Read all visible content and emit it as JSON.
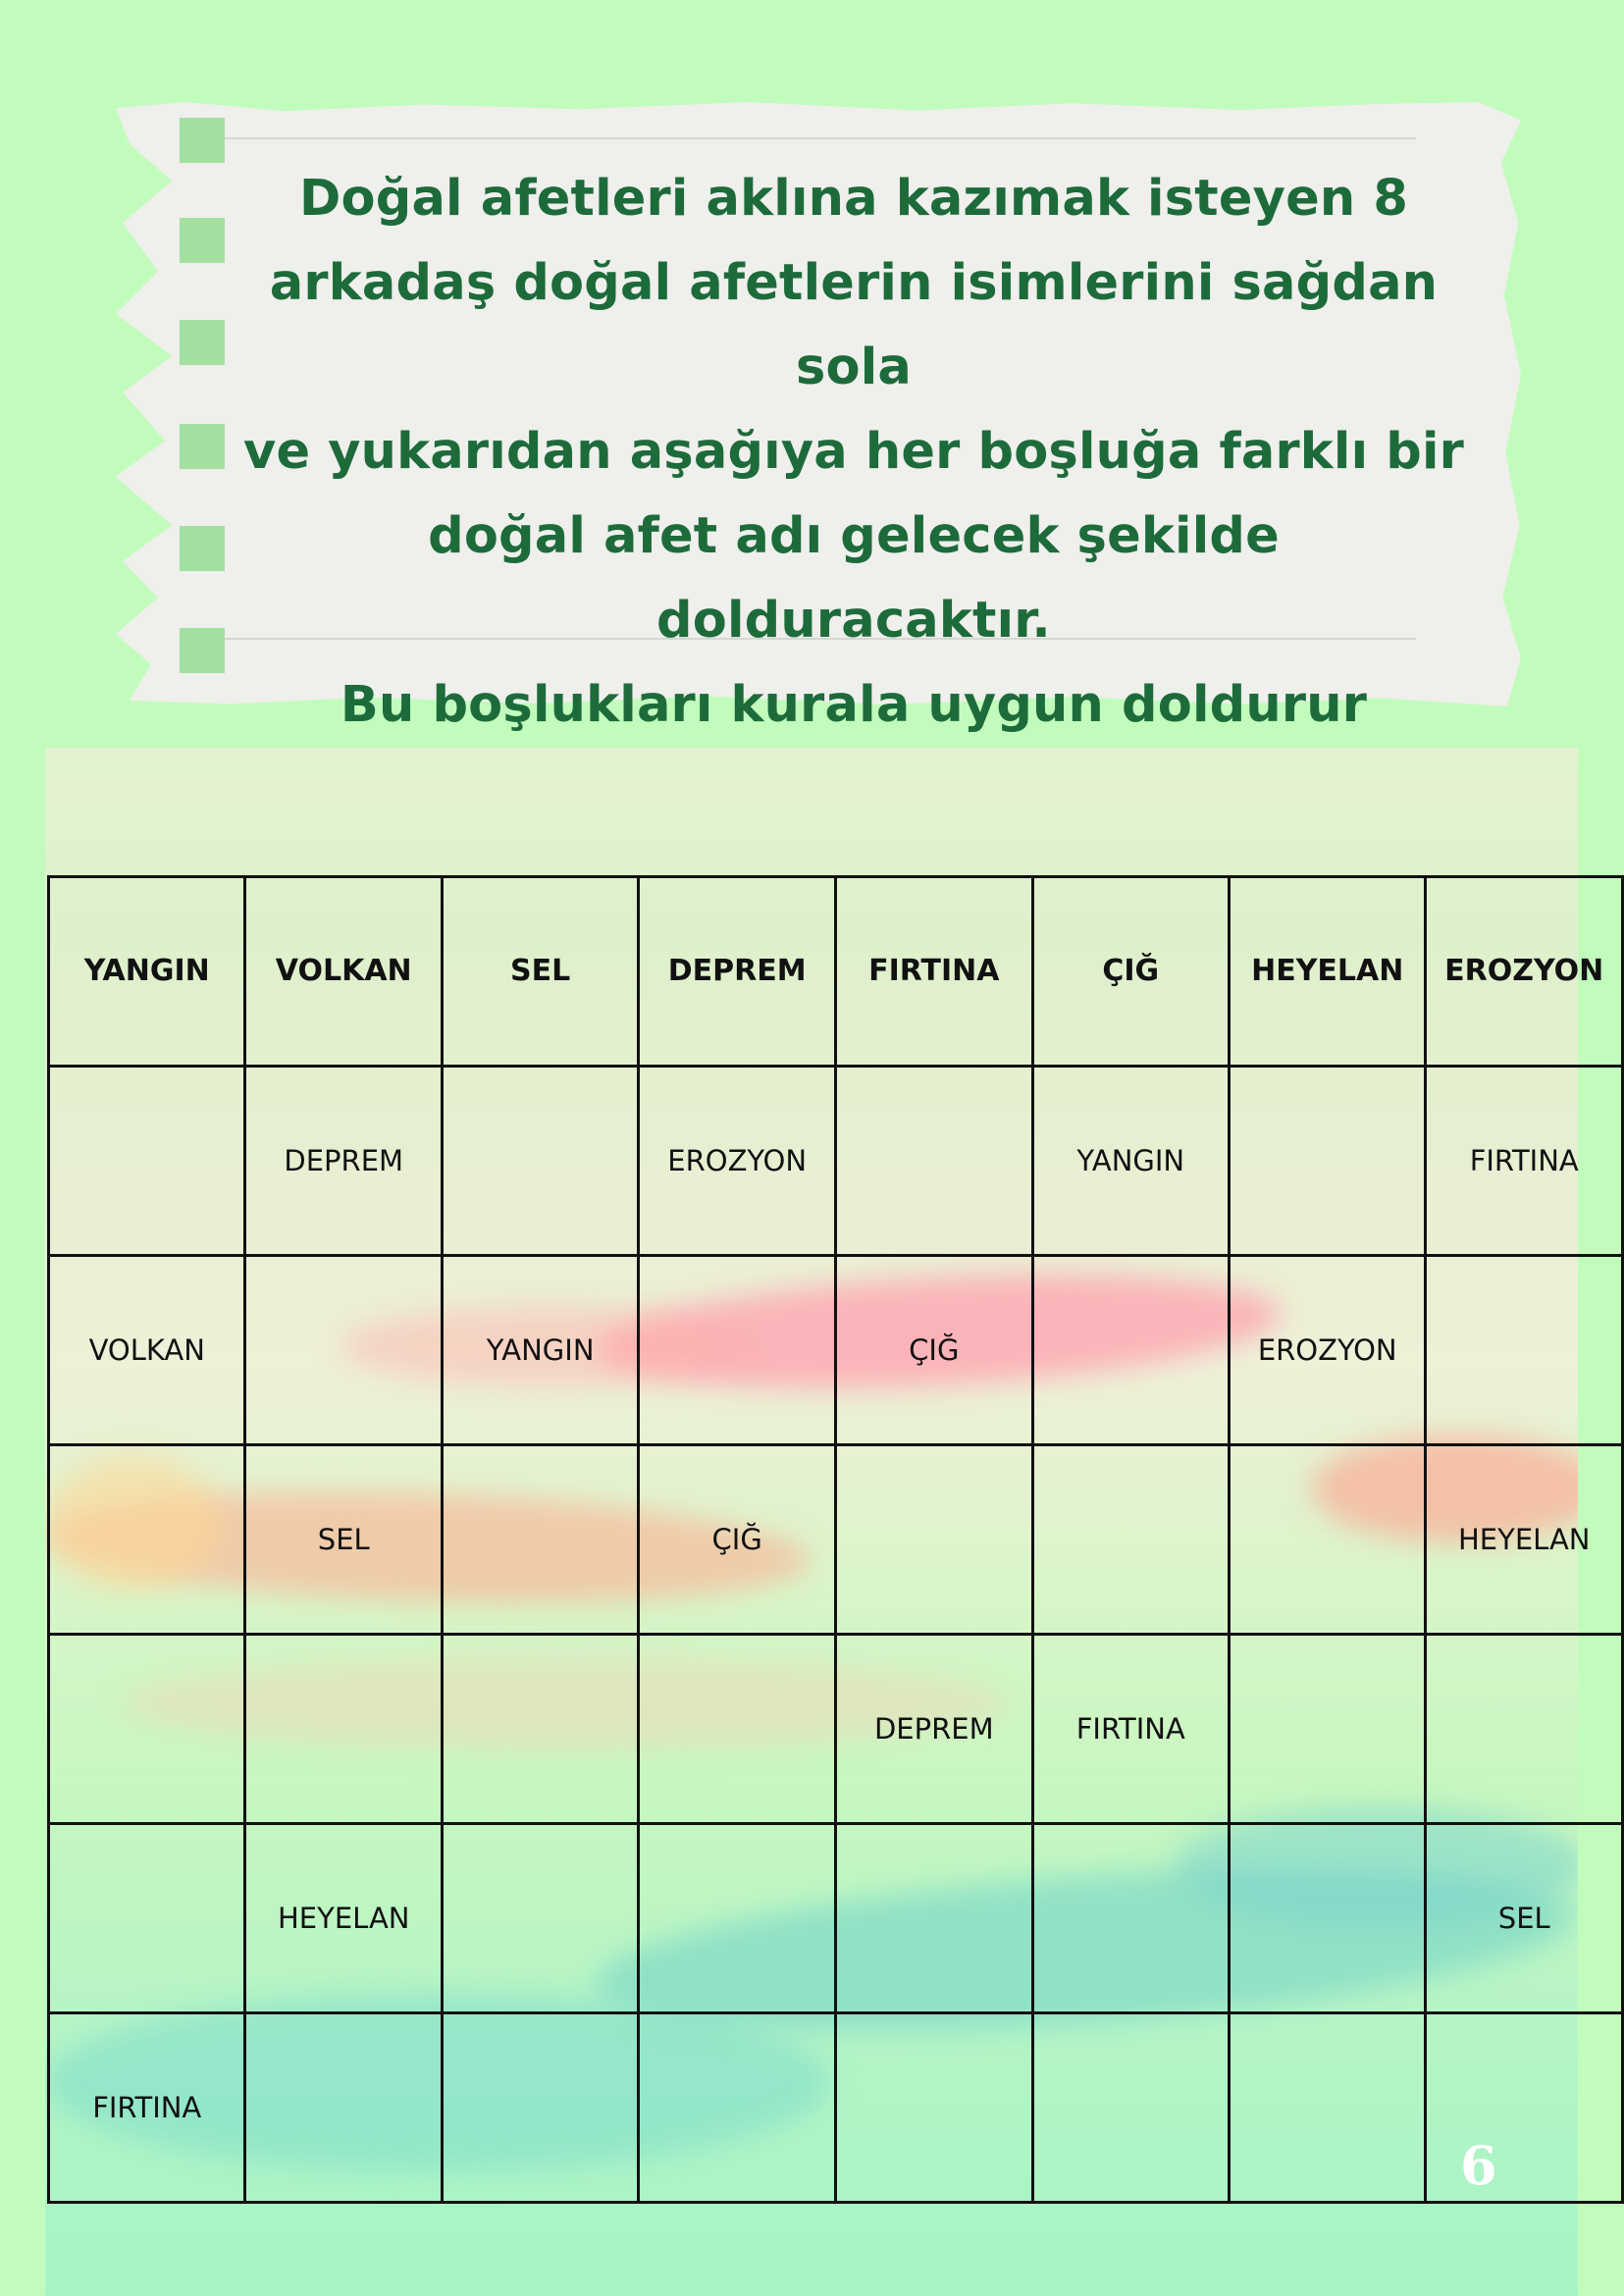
{
  "instructions": {
    "lines": [
      "Doğal afetleri aklına kazımak isteyen 8",
      "arkadaş doğal afetlerin isimlerini sağdan sola",
      "ve yukarıdan aşağıya her boşluğa farklı bir",
      "doğal afet adı gelecek şekilde dolduracaktır.",
      "Bu boşlukları kurala uygun doldurur musunuz?"
    ]
  },
  "grid": {
    "rows": [
      [
        "YANGIN",
        "VOLKAN",
        "SEL",
        "DEPREM",
        "FIRTINA",
        "ÇIĞ",
        "HEYELAN",
        "EROZYON"
      ],
      [
        "",
        "DEPREM",
        "",
        "EROZYON",
        "",
        "YANGIN",
        "",
        "FIRTINA"
      ],
      [
        "VOLKAN",
        "",
        "YANGIN",
        "",
        "ÇIĞ",
        "",
        "EROZYON",
        ""
      ],
      [
        "",
        "SEL",
        "",
        "ÇIĞ",
        "",
        "",
        "",
        "HEYELAN"
      ],
      [
        "",
        "",
        "",
        "",
        "DEPREM",
        "FIRTINA",
        "",
        ""
      ],
      [
        "",
        "HEYELAN",
        "",
        "",
        "",
        "",
        "",
        "SEL"
      ],
      [
        "FIRTINA",
        "",
        "",
        "",
        "",
        "",
        "",
        ""
      ]
    ]
  },
  "page_number": "6",
  "colors": {
    "background": "#c2fcbc",
    "heading_text": "#1d6b3b",
    "grid_border": "#111111"
  }
}
